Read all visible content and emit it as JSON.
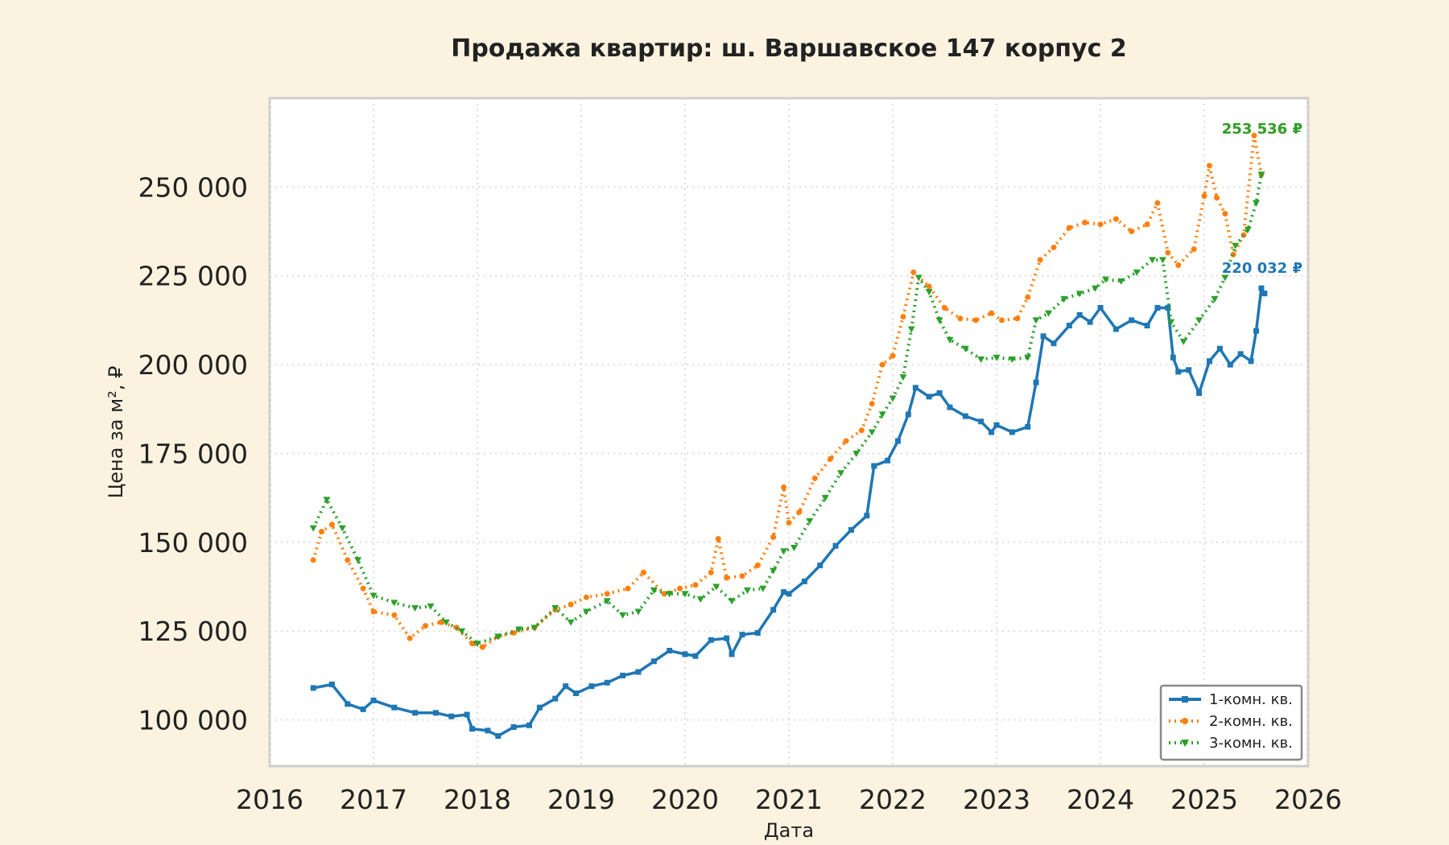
{
  "chart_data": {
    "type": "line",
    "title": "Продажа квартир: ш. Варшавское 147 корпус 2",
    "xlabel": "Дата",
    "ylabel": "Цена за м², ₽",
    "xlim": [
      2016,
      2026
    ],
    "ylim": [
      87000,
      275000
    ],
    "x_ticks": [
      "2016",
      "2017",
      "2018",
      "2019",
      "2020",
      "2021",
      "2022",
      "2023",
      "2024",
      "2025",
      "2026"
    ],
    "y_ticks": [
      "100 000",
      "125 000",
      "150 000",
      "175 000",
      "200 000",
      "225 000",
      "250 000"
    ],
    "y_tick_values": [
      100000,
      125000,
      150000,
      175000,
      200000,
      225000,
      250000
    ],
    "grid": true,
    "legend_position": "lower-right",
    "series": [
      {
        "name": "1-комн. кв.",
        "color": "#1f77b4",
        "marker": "square",
        "end_label": "220 032 ₽",
        "points": [
          [
            2016.42,
            109000
          ],
          [
            2016.6,
            110000
          ],
          [
            2016.75,
            104500
          ],
          [
            2016.9,
            103000
          ],
          [
            2017.0,
            105500
          ],
          [
            2017.2,
            103500
          ],
          [
            2017.4,
            102000
          ],
          [
            2017.6,
            102000
          ],
          [
            2017.75,
            101000
          ],
          [
            2017.9,
            101500
          ],
          [
            2017.95,
            97500
          ],
          [
            2018.1,
            97000
          ],
          [
            2018.2,
            95500
          ],
          [
            2018.35,
            98000
          ],
          [
            2018.5,
            98500
          ],
          [
            2018.6,
            103500
          ],
          [
            2018.75,
            106000
          ],
          [
            2018.85,
            109500
          ],
          [
            2018.95,
            107500
          ],
          [
            2019.1,
            109500
          ],
          [
            2019.25,
            110500
          ],
          [
            2019.4,
            112500
          ],
          [
            2019.55,
            113500
          ],
          [
            2019.7,
            116500
          ],
          [
            2019.85,
            119500
          ],
          [
            2020.0,
            118500
          ],
          [
            2020.1,
            118000
          ],
          [
            2020.25,
            122500
          ],
          [
            2020.4,
            123000
          ],
          [
            2020.45,
            118500
          ],
          [
            2020.55,
            124000
          ],
          [
            2020.7,
            124500
          ],
          [
            2020.85,
            131000
          ],
          [
            2020.95,
            136000
          ],
          [
            2021.0,
            135500
          ],
          [
            2021.15,
            139000
          ],
          [
            2021.3,
            143500
          ],
          [
            2021.45,
            149000
          ],
          [
            2021.6,
            153500
          ],
          [
            2021.75,
            157500
          ],
          [
            2021.82,
            171500
          ],
          [
            2021.95,
            173000
          ],
          [
            2022.05,
            178500
          ],
          [
            2022.15,
            186000
          ],
          [
            2022.22,
            193500
          ],
          [
            2022.35,
            191000
          ],
          [
            2022.45,
            192000
          ],
          [
            2022.55,
            188000
          ],
          [
            2022.7,
            185500
          ],
          [
            2022.85,
            184000
          ],
          [
            2022.95,
            181000
          ],
          [
            2023.0,
            183000
          ],
          [
            2023.15,
            181000
          ],
          [
            2023.3,
            182500
          ],
          [
            2023.38,
            195000
          ],
          [
            2023.45,
            208000
          ],
          [
            2023.55,
            206000
          ],
          [
            2023.7,
            211000
          ],
          [
            2023.8,
            214000
          ],
          [
            2023.9,
            212000
          ],
          [
            2024.0,
            216000
          ],
          [
            2024.15,
            210000
          ],
          [
            2024.3,
            212500
          ],
          [
            2024.45,
            211000
          ],
          [
            2024.55,
            216000
          ],
          [
            2024.65,
            216000
          ],
          [
            2024.7,
            202000
          ],
          [
            2024.75,
            198000
          ],
          [
            2024.85,
            198500
          ],
          [
            2024.95,
            192000
          ],
          [
            2025.05,
            201000
          ],
          [
            2025.15,
            204500
          ],
          [
            2025.25,
            200000
          ],
          [
            2025.35,
            203000
          ],
          [
            2025.45,
            201000
          ],
          [
            2025.5,
            209500
          ],
          [
            2025.55,
            221500
          ],
          [
            2025.58,
            220032
          ]
        ]
      },
      {
        "name": "2-комн. кв.",
        "color": "#ff7f0e",
        "marker": "circle",
        "end_label": "253 536 ₽",
        "points": [
          [
            2016.42,
            145000
          ],
          [
            2016.5,
            153000
          ],
          [
            2016.6,
            155000
          ],
          [
            2016.75,
            145000
          ],
          [
            2016.9,
            137000
          ],
          [
            2017.0,
            130500
          ],
          [
            2017.2,
            129500
          ],
          [
            2017.35,
            123000
          ],
          [
            2017.5,
            126500
          ],
          [
            2017.65,
            127500
          ],
          [
            2017.8,
            126000
          ],
          [
            2017.95,
            121500
          ],
          [
            2018.05,
            120500
          ],
          [
            2018.2,
            123500
          ],
          [
            2018.35,
            124500
          ],
          [
            2018.55,
            126000
          ],
          [
            2018.75,
            131000
          ],
          [
            2018.9,
            132500
          ],
          [
            2019.05,
            134500
          ],
          [
            2019.25,
            135500
          ],
          [
            2019.45,
            137000
          ],
          [
            2019.6,
            141500
          ],
          [
            2019.8,
            135500
          ],
          [
            2019.95,
            137000
          ],
          [
            2020.1,
            138000
          ],
          [
            2020.25,
            141500
          ],
          [
            2020.32,
            151000
          ],
          [
            2020.4,
            140000
          ],
          [
            2020.55,
            140500
          ],
          [
            2020.7,
            143500
          ],
          [
            2020.85,
            151500
          ],
          [
            2020.95,
            165500
          ],
          [
            2021.0,
            155500
          ],
          [
            2021.1,
            158500
          ],
          [
            2021.25,
            168000
          ],
          [
            2021.4,
            173500
          ],
          [
            2021.55,
            178500
          ],
          [
            2021.7,
            181500
          ],
          [
            2021.8,
            189000
          ],
          [
            2021.9,
            200000
          ],
          [
            2022.0,
            202500
          ],
          [
            2022.1,
            213500
          ],
          [
            2022.2,
            226000
          ],
          [
            2022.35,
            222000
          ],
          [
            2022.5,
            216000
          ],
          [
            2022.65,
            213000
          ],
          [
            2022.8,
            212500
          ],
          [
            2022.95,
            214500
          ],
          [
            2023.05,
            212500
          ],
          [
            2023.2,
            213000
          ],
          [
            2023.3,
            219000
          ],
          [
            2023.42,
            229500
          ],
          [
            2023.55,
            233000
          ],
          [
            2023.7,
            238500
          ],
          [
            2023.85,
            240000
          ],
          [
            2024.0,
            239500
          ],
          [
            2024.15,
            241000
          ],
          [
            2024.3,
            237500
          ],
          [
            2024.45,
            239500
          ],
          [
            2024.55,
            245500
          ],
          [
            2024.65,
            231500
          ],
          [
            2024.75,
            228000
          ],
          [
            2024.9,
            232500
          ],
          [
            2025.0,
            247500
          ],
          [
            2025.05,
            256000
          ],
          [
            2025.12,
            247000
          ],
          [
            2025.2,
            242500
          ],
          [
            2025.28,
            231000
          ],
          [
            2025.38,
            236500
          ],
          [
            2025.48,
            264500
          ],
          [
            2025.55,
            253536
          ]
        ]
      },
      {
        "name": "3-комн. кв.",
        "color": "#2ca02c",
        "marker": "triangle-down",
        "end_label": "253 536 ₽",
        "points": [
          [
            2016.42,
            154000
          ],
          [
            2016.55,
            162000
          ],
          [
            2016.7,
            154000
          ],
          [
            2016.85,
            145000
          ],
          [
            2017.0,
            135000
          ],
          [
            2017.2,
            133000
          ],
          [
            2017.4,
            131500
          ],
          [
            2017.55,
            132000
          ],
          [
            2017.7,
            127500
          ],
          [
            2017.85,
            125000
          ],
          [
            2018.0,
            121500
          ],
          [
            2018.2,
            123500
          ],
          [
            2018.4,
            125500
          ],
          [
            2018.55,
            126000
          ],
          [
            2018.75,
            131500
          ],
          [
            2018.9,
            127500
          ],
          [
            2019.05,
            130500
          ],
          [
            2019.25,
            133500
          ],
          [
            2019.4,
            129500
          ],
          [
            2019.55,
            130500
          ],
          [
            2019.7,
            136500
          ],
          [
            2019.85,
            135500
          ],
          [
            2020.0,
            135500
          ],
          [
            2020.15,
            134000
          ],
          [
            2020.3,
            137500
          ],
          [
            2020.45,
            133500
          ],
          [
            2020.6,
            136500
          ],
          [
            2020.75,
            137000
          ],
          [
            2020.85,
            142000
          ],
          [
            2020.95,
            147500
          ],
          [
            2021.05,
            148500
          ],
          [
            2021.2,
            156000
          ],
          [
            2021.35,
            162500
          ],
          [
            2021.5,
            169500
          ],
          [
            2021.65,
            175000
          ],
          [
            2021.8,
            181000
          ],
          [
            2021.9,
            186000
          ],
          [
            2022.0,
            190500
          ],
          [
            2022.1,
            196500
          ],
          [
            2022.18,
            210000
          ],
          [
            2022.25,
            224500
          ],
          [
            2022.35,
            220500
          ],
          [
            2022.45,
            212500
          ],
          [
            2022.55,
            207000
          ],
          [
            2022.7,
            204500
          ],
          [
            2022.85,
            201500
          ],
          [
            2023.0,
            202000
          ],
          [
            2023.15,
            201500
          ],
          [
            2023.3,
            202000
          ],
          [
            2023.38,
            212500
          ],
          [
            2023.5,
            214500
          ],
          [
            2023.65,
            218500
          ],
          [
            2023.8,
            220000
          ],
          [
            2023.95,
            221500
          ],
          [
            2024.05,
            224000
          ],
          [
            2024.2,
            223500
          ],
          [
            2024.35,
            226000
          ],
          [
            2024.5,
            229500
          ],
          [
            2024.6,
            229500
          ],
          [
            2024.68,
            212000
          ],
          [
            2024.8,
            206500
          ],
          [
            2024.95,
            212500
          ],
          [
            2025.1,
            218500
          ],
          [
            2025.2,
            224500
          ],
          [
            2025.3,
            233500
          ],
          [
            2025.42,
            238000
          ],
          [
            2025.5,
            245500
          ],
          [
            2025.55,
            253536
          ]
        ]
      }
    ]
  }
}
